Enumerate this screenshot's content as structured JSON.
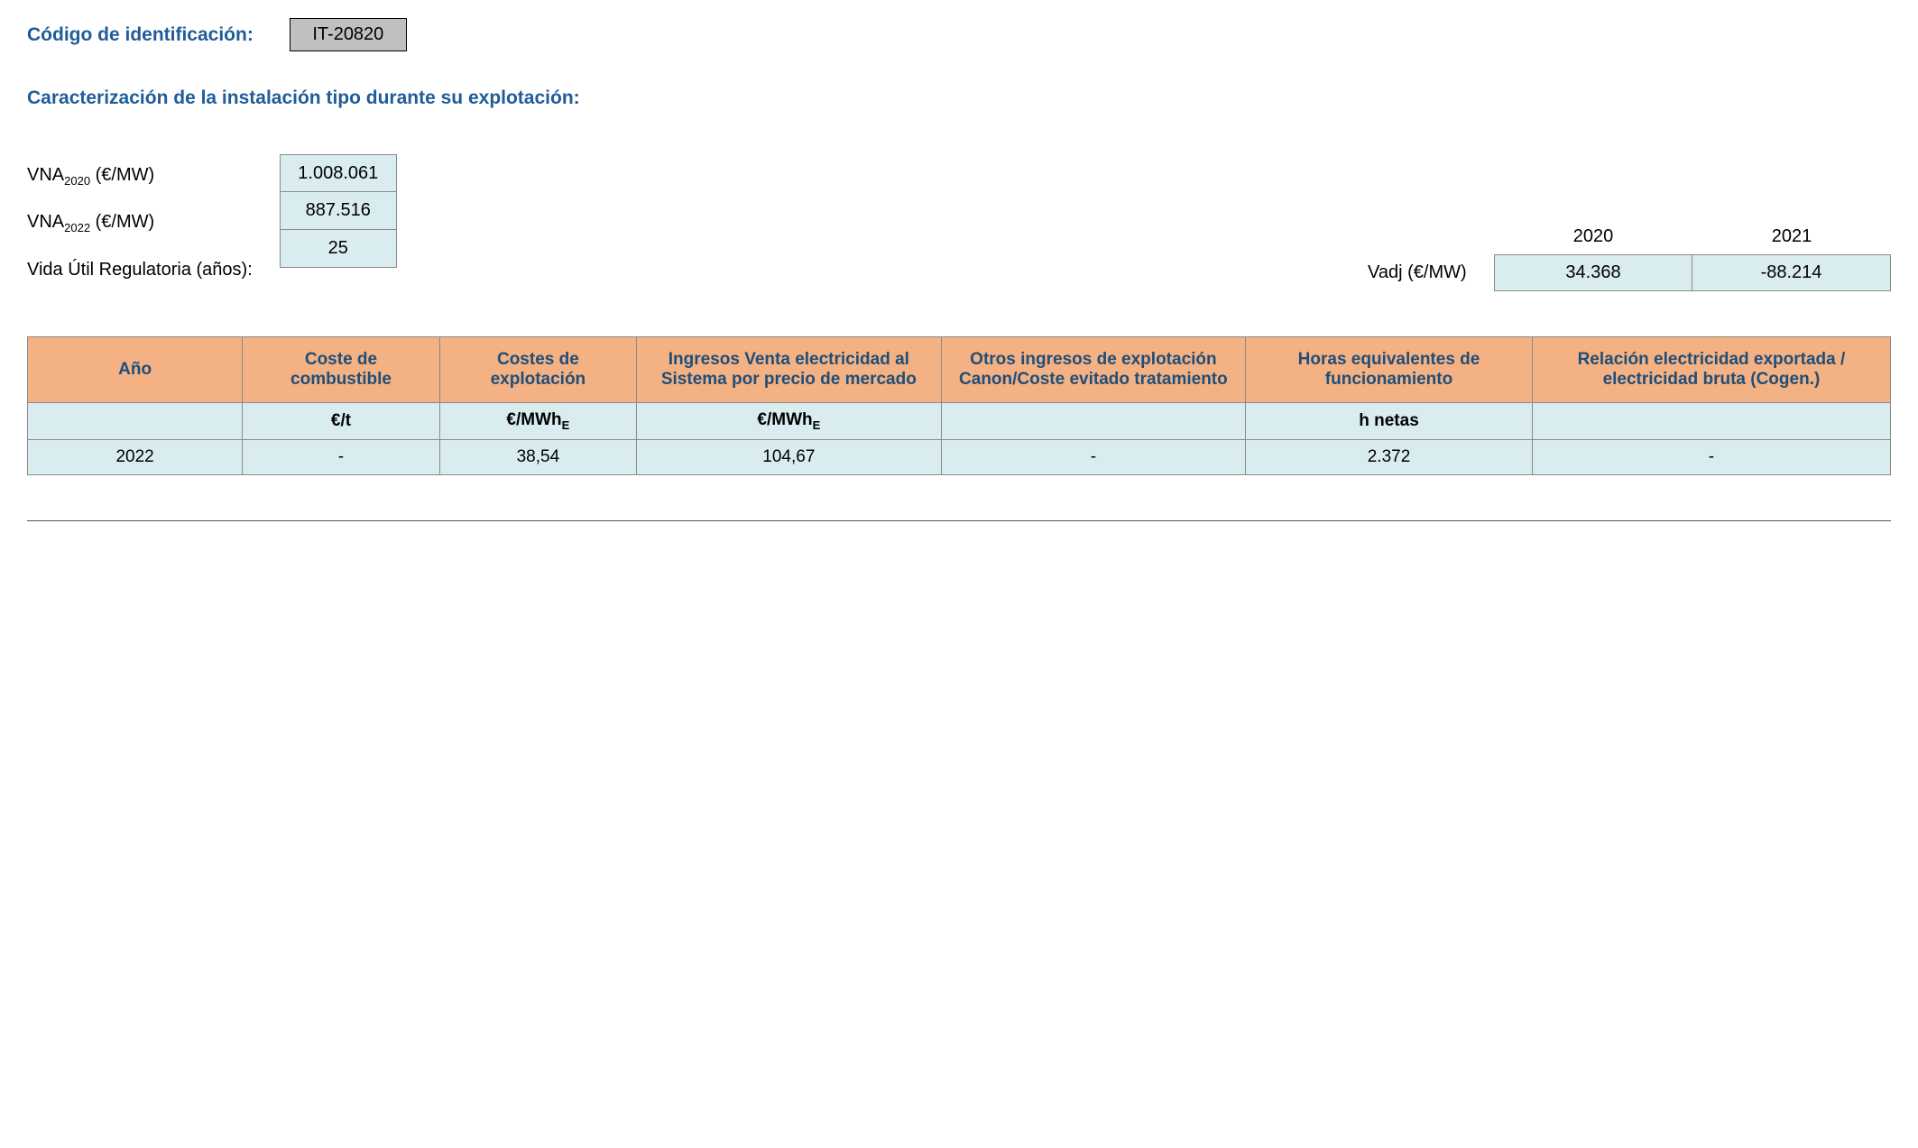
{
  "colors": {
    "heading": "#1f5c99",
    "table_header_bg": "#f4b183",
    "table_header_text": "#1f4e79",
    "cell_bg": "#d9edf0",
    "code_bg": "#c0c0c0",
    "border": "#8a8a8a"
  },
  "header": {
    "label": "Código de identificación:",
    "code": "IT-20820"
  },
  "section_title": "Caracterización de la instalación tipo durante su explotación:",
  "vna": {
    "rows": [
      {
        "label_prefix": "VNA",
        "label_sub": "2020",
        "label_suffix": " (€/MW)",
        "value": "1.008.061"
      },
      {
        "label_prefix": "VNA",
        "label_sub": "2022",
        "label_suffix": " (€/MW)",
        "value": "887.516"
      },
      {
        "label_plain": "Vida Útil Regulatoria (años):",
        "value": "25"
      }
    ]
  },
  "vadj": {
    "label": "Vadj (€/MW)",
    "years": [
      "2020",
      "2021"
    ],
    "values": [
      "34.368",
      "-88.214"
    ]
  },
  "table": {
    "headers": [
      "Año",
      "Coste de combustible",
      "Costes de explotación",
      "Ingresos Venta electricidad al Sistema por precio de mercado",
      "Otros ingresos de explotación Canon/Coste evitado tratamiento",
      "Horas equivalentes de funcionamiento",
      "Relación electricidad exportada / electricidad bruta (Cogen.)"
    ],
    "units": [
      "",
      "€/t",
      "€/MWh",
      "€/MWh",
      "",
      "h netas",
      ""
    ],
    "units_sub": [
      "",
      "",
      "E",
      "E",
      "",
      "",
      ""
    ],
    "rows": [
      {
        "cells": [
          "2022",
          "-",
          "38,54",
          "104,67",
          "-",
          "2.372",
          "-"
        ]
      }
    ]
  }
}
